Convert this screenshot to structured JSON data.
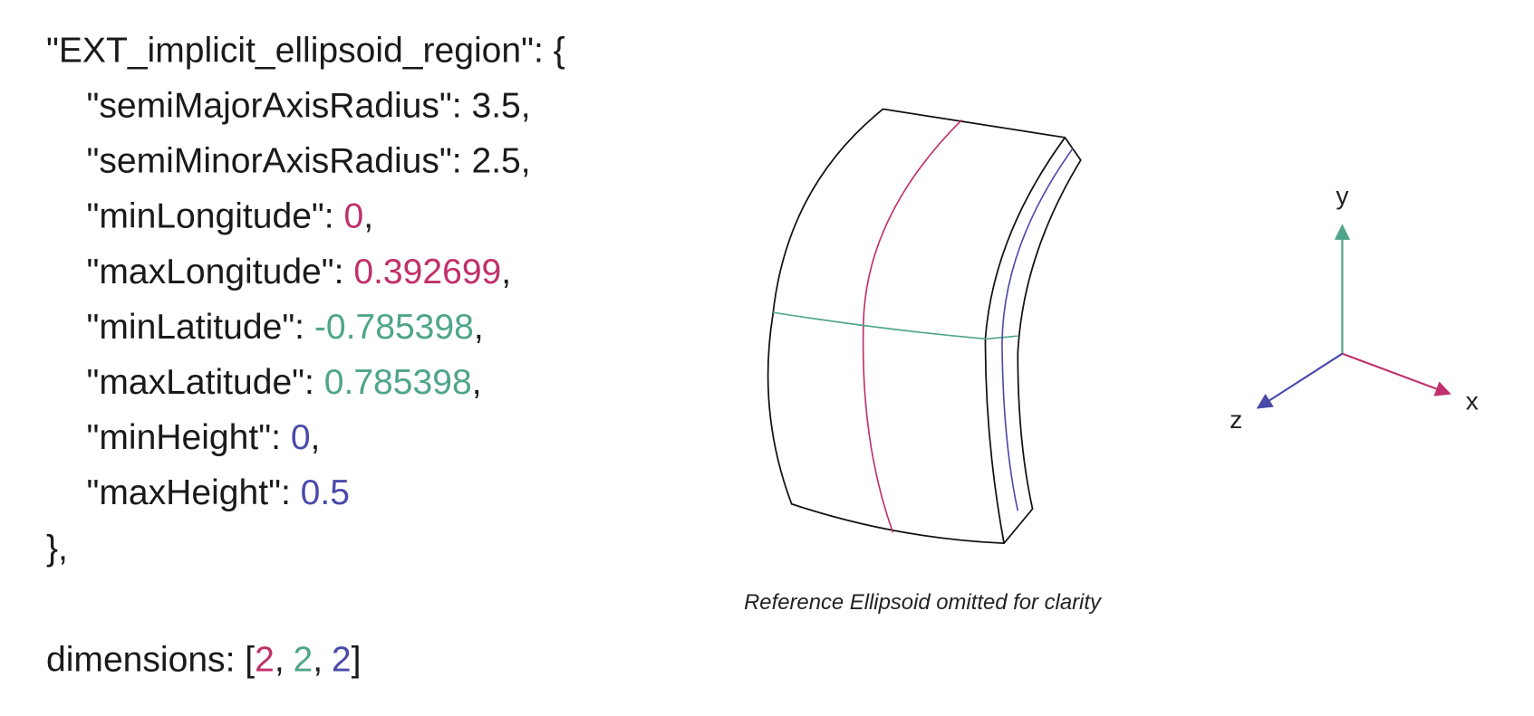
{
  "code": {
    "open": "\"EXT_implicit_ellipsoid_region\": {",
    "properties": [
      {
        "key": "\"semiMajorAxisRadius\":",
        "value": 3.5,
        "separator": ","
      },
      {
        "key": "\"semiMinorAxisRadius\":",
        "value": 2.5,
        "separator": ","
      },
      {
        "key": "\"minLongitude\":",
        "value": 0,
        "separator": ","
      },
      {
        "key": "\"maxLongitude\":",
        "value": 0.392699,
        "separator": ","
      },
      {
        "key": "\"minLatitude\":",
        "value": -0.785398,
        "separator": ","
      },
      {
        "key": "\"maxLatitude\":",
        "value": 0.785398,
        "separator": ","
      },
      {
        "key": "\"minHeight\":",
        "value": 0,
        "separator": ","
      },
      {
        "key": "\"maxHeight\":",
        "value": 0.5
      }
    ],
    "close": "},"
  },
  "dimensions": {
    "prefix": "dimensions: [",
    "values": [
      2,
      2,
      2
    ],
    "separator": ",",
    "suffix": "]"
  },
  "diagram": {
    "caption": "Reference Ellipsoid omitted for clarity",
    "axes": {
      "x": "x",
      "y": "y",
      "z": "z"
    }
  }
}
